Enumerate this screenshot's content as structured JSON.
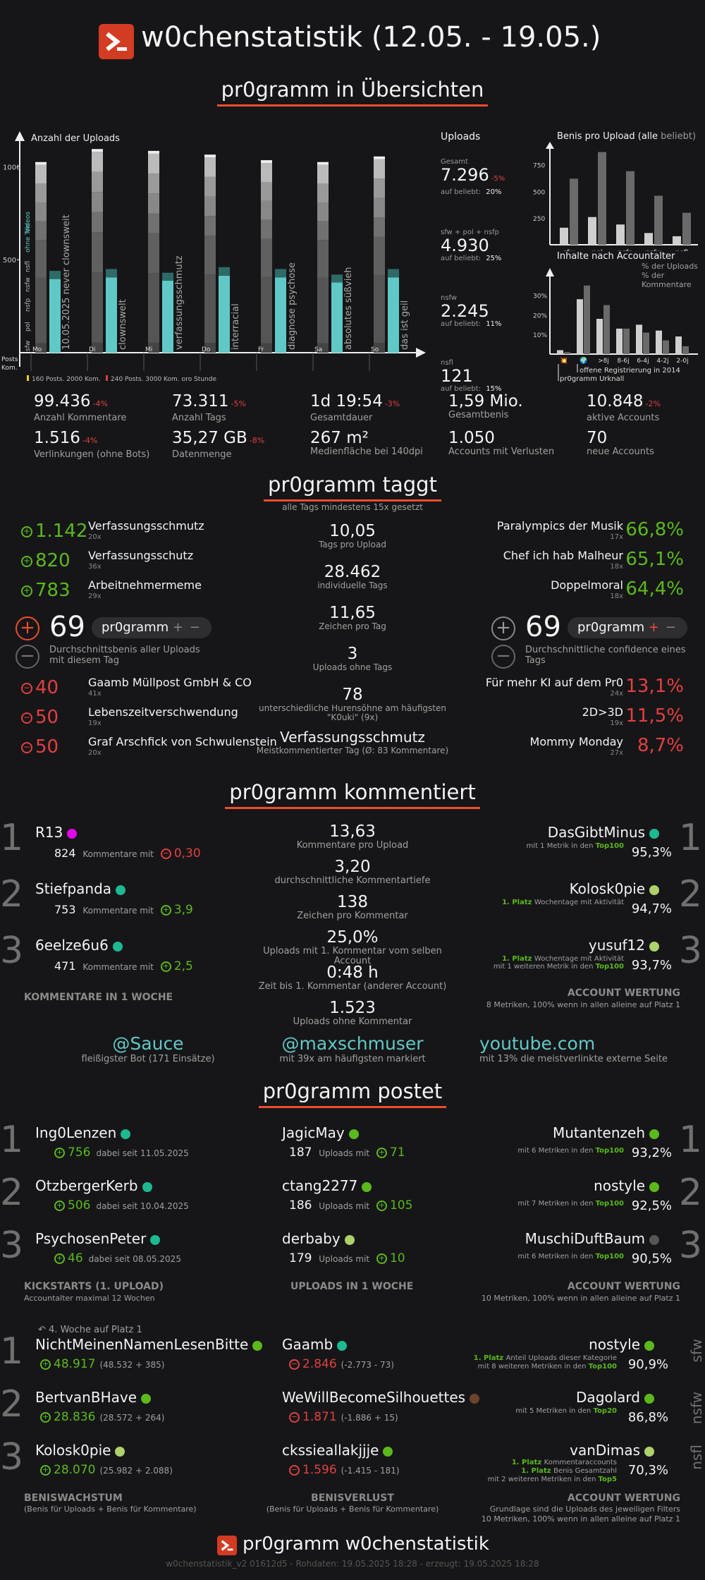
{
  "header": {
    "title": "w0chenstatistik (12.05. - 19.05.)"
  },
  "sections": {
    "overview": "pr0gramm in Übersichten",
    "tags": "pr0gramm taggt",
    "comments": "pr0gramm kommentiert",
    "posts": "pr0gramm postet"
  },
  "uploads_chart": {
    "title": "Anzahl der Uploads",
    "ticks": [
      "1000",
      "500"
    ],
    "days": [
      "Mo",
      "Di",
      "Mi",
      "Do",
      "Fr",
      "Sa",
      "So"
    ],
    "top_tags": [
      "10.05.2025 never clownsweit",
      "clownswelt",
      "verfassungsschmutz",
      "interracial",
      "diagnose psychose",
      "absolutes süßvieh",
      "das ist geil"
    ],
    "left_labels": [
      "Videos",
      "ohne Ton",
      "nsfl",
      "nsfw",
      "nsfp",
      "pol",
      "sfw"
    ],
    "posts_label": "Posts",
    "kom_label": "Kom.",
    "legend1": "160 Posts, 2000 Kom.",
    "legend2": "240 Posts, 3000 Kom. pro Stunde",
    "chart_data": {
      "type": "bar",
      "categories": [
        "Mo",
        "Di",
        "Mi",
        "Do",
        "Fr",
        "Sa",
        "So"
      ],
      "series": [
        {
          "name": "Posts",
          "values": [
            1010,
            1080,
            1070,
            1050,
            1020,
            1010,
            1040
          ]
        },
        {
          "name": "Kom.",
          "values": [
            440,
            450,
            430,
            460,
            450,
            420,
            450
          ]
        }
      ],
      "ylim": [
        0,
        1100
      ]
    }
  },
  "uploads_summary": {
    "title": "Uploads",
    "items": [
      {
        "label": "Gesamt",
        "value": "7.296",
        "delta": "-5%",
        "sub": "auf beliebt:",
        "pct": "20%"
      },
      {
        "label": "sfw + pol + nsfp",
        "value": "4.930",
        "delta": "",
        "sub": "auf beliebt:",
        "pct": "25%"
      },
      {
        "label": "nsfw",
        "value": "2.245",
        "delta": "",
        "sub": "auf beliebt:",
        "pct": "11%"
      },
      {
        "label": "nsfl",
        "value": "121",
        "delta": "",
        "sub": "auf beliebt:",
        "pct": "15%"
      }
    ]
  },
  "benis_chart": {
    "title": "Benis pro Upload",
    "title_paren": "(alle",
    "title_beliebt": "beliebt)",
    "ticks": [
      "750",
      "500",
      "250"
    ],
    "chart_data": {
      "type": "bar",
      "categories": [
        "sfw",
        "pol",
        "nsfp",
        "nsfw",
        "nsfl"
      ],
      "series": [
        {
          "name": "alle",
          "values": [
            160,
            260,
            190,
            110,
            80
          ]
        },
        {
          "name": "beliebt",
          "values": [
            620,
            870,
            690,
            460,
            300
          ]
        }
      ],
      "ylim": [
        0,
        900
      ]
    }
  },
  "age_chart": {
    "title": "Inhalte nach Accountalter",
    "legend_uploads": "% der Uploads",
    "legend_comments": "% der Kommentare",
    "ticks": [
      "30%",
      "20%",
      "10%"
    ],
    "note1": "offene Registrierung in 2014",
    "note2": "pr0gramm Urknall",
    "chart_data": {
      "type": "bar",
      "categories": [
        "💥",
        "🌍",
        ">8j",
        "8-6j",
        "6-4j",
        "4-2j",
        "2-0j"
      ],
      "series": [
        {
          "name": "% der Uploads",
          "values": [
            2,
            28,
            18,
            13,
            15,
            12,
            9
          ]
        },
        {
          "name": "% der Kommentare",
          "values": [
            1,
            35,
            25,
            13,
            11,
            7,
            4
          ]
        }
      ],
      "ylim": [
        0,
        36
      ]
    }
  },
  "stats": [
    {
      "value": "99.436",
      "delta": "-4%",
      "label": "Anzahl Kommentare"
    },
    {
      "value": "73.311",
      "delta": "-5%",
      "label": "Anzahl Tags"
    },
    {
      "value": "1d 19:54",
      "delta": "-3%",
      "label": "Gesamtdauer"
    },
    {
      "value": "1,59 Mio.",
      "delta": "",
      "label": "Gesamtbenis"
    },
    {
      "value": "10.848",
      "delta": "-2%",
      "label": "aktive Accounts"
    },
    {
      "value": "1.516",
      "delta": "-4%",
      "label": "Verlinkungen (ohne Bots)"
    },
    {
      "value": "35,27 GB",
      "delta": "-8%",
      "label": "Datenmenge"
    },
    {
      "value": "267 m²",
      "delta": "",
      "label": "Medienfläche bei 140dpi"
    },
    {
      "value": "1.050",
      "delta": "",
      "label": "Accounts mit Verlusten"
    },
    {
      "value": "70",
      "delta": "",
      "label": "neue Accounts"
    }
  ],
  "tags": {
    "subtitle": "alle Tags mindestens 15x gesetzt",
    "top_benis": [
      {
        "value": "1.142",
        "name": "Verfassungsschmutz",
        "count": "20x"
      },
      {
        "value": "820",
        "name": "Verfassungsschutz",
        "count": "36x"
      },
      {
        "value": "783",
        "name": "Arbeitnehmermeme",
        "count": "29x"
      }
    ],
    "bottom_benis": [
      {
        "value": "40",
        "name": "Gaamb Müllpost GmbH & CO",
        "count": "41x"
      },
      {
        "value": "50",
        "name": "Lebenszeitverschwendung",
        "count": "19x"
      },
      {
        "value": "50",
        "name": "Graf Arschfick von Schwulenstein",
        "count": "20x"
      }
    ],
    "top_conf": [
      {
        "name": "Paralympics der Musik",
        "count": "17x",
        "value": "66,8%"
      },
      {
        "name": "Chef ich hab Malheur",
        "count": "18x",
        "value": "65,1%"
      },
      {
        "name": "Doppelmoral",
        "count": "18x",
        "value": "64,4%"
      }
    ],
    "bottom_conf": [
      {
        "name": "Für mehr KI auf dem Pr0",
        "count": "24x",
        "value": "13,1%"
      },
      {
        "name": "2D>3D",
        "count": "19x",
        "value": "11,5%"
      },
      {
        "name": "Mommy Monday",
        "count": "27x",
        "value": "8,7%"
      }
    ],
    "left_mid": {
      "value": "69",
      "toggle": "pr0gramm",
      "desc": "Durchschnittsbenis aller Uploads mit diesem Tag"
    },
    "right_mid": {
      "value": "69",
      "toggle": "pr0gramm",
      "desc": "Durchschnittliche confidence eines Tags"
    },
    "center": [
      {
        "value": "10,05",
        "label": "Tags pro Upload"
      },
      {
        "value": "28.462",
        "label": "individuelle Tags"
      },
      {
        "value": "11,65",
        "label": "Zeichen pro Tag"
      },
      {
        "value": "3",
        "label": "Uploads ohne Tags"
      },
      {
        "value": "78",
        "label": "unterschiedliche Hurensöhne am häufigsten \"K0uki\" (9x)"
      },
      {
        "value": "Verfassungsschmutz",
        "label": "Meistkommentierter Tag (Ø: 83 Kommentare)"
      }
    ]
  },
  "comments": {
    "left": [
      {
        "rank": "1",
        "name": "R13",
        "color": "#e108e9",
        "count": "824",
        "text": "Kommentare mit",
        "benis": "0,30",
        "sign": "-"
      },
      {
        "rank": "2",
        "name": "Stiefpanda",
        "color": "#1cb992",
        "count": "753",
        "text": "Kommentare mit",
        "benis": "3,9",
        "sign": "+"
      },
      {
        "rank": "3",
        "name": "6eelze6u6",
        "color": "#1cb992",
        "count": "471",
        "text": "Kommentare mit",
        "benis": "2,5",
        "sign": "+"
      }
    ],
    "left_footer": "KOMMENTARE IN 1 WOCHE",
    "center": [
      {
        "value": "13,63",
        "label": "Kommentare pro Upload"
      },
      {
        "value": "3,20",
        "label": "durchschnittliche Kommentartiefe"
      },
      {
        "value": "138",
        "label": "Zeichen pro Kommentar"
      },
      {
        "value": "25,0%",
        "label": "Uploads mit 1. Kommentar vom selben Account"
      },
      {
        "value": "0:48 h",
        "label": "Zeit bis 1. Kommentar (anderer Account)"
      },
      {
        "value": "1.523",
        "label": "Uploads ohne Kommentar"
      }
    ],
    "right": [
      {
        "rank": "1",
        "name": "DasGibtMinus",
        "color": "#1cb992",
        "line1": "mit 1 Metrik in den",
        "badge": "Top100",
        "value": "95,3%"
      },
      {
        "rank": "2",
        "name": "Kolosk0pie",
        "color": "#add16b",
        "line1": "1. Platz",
        "line2": "Wochentage mit Aktivität",
        "value": "94,7%"
      },
      {
        "rank": "3",
        "name": "yusuf12",
        "color": "#add16b",
        "line1": "1. Platz",
        "line2": "Wochentage mit Aktivität",
        "line3": "mit 1 weiteren Metrik in den",
        "badge": "Top100",
        "value": "93,7%"
      }
    ],
    "right_footer": "ACCOUNT WERTUNG",
    "right_footer_sub": "8 Metriken, 100% wenn in allen alleine auf Platz 1",
    "links": [
      {
        "value": "@Sauce",
        "label": "fleißigster Bot (171 Einsätze)"
      },
      {
        "value": "@maxschmuser",
        "label": "mit 39x am häufigsten markiert"
      },
      {
        "value": "youtube.com",
        "label": "mit 13% die meistverlinkte externe Seite"
      }
    ]
  },
  "posts": {
    "kick": [
      {
        "rank": "1",
        "name": "Ing0Lenzen",
        "color": "#1cb992",
        "benis": "756",
        "text": "dabei seit 11.05.2025"
      },
      {
        "rank": "2",
        "name": "OtzbergerKerb",
        "color": "#1cb992",
        "benis": "506",
        "text": "dabei seit 10.04.2025"
      },
      {
        "rank": "3",
        "name": "PsychosenPeter",
        "color": "#1cb992",
        "benis": "46",
        "text": "dabei seit 08.05.2025"
      }
    ],
    "kick_footer": "KICKSTARTS (1. UPLOAD)",
    "kick_footer_sub": "Accountalter maximal 12 Wochen",
    "uploads": [
      {
        "name": "JagicMay",
        "color": "#5bb91c",
        "count": "187",
        "benis": "71"
      },
      {
        "name": "ctang2277",
        "color": "#5bb91c",
        "count": "186",
        "benis": "105"
      },
      {
        "name": "derbaby",
        "color": "#add16b",
        "count": "179",
        "benis": "10"
      }
    ],
    "uploads_text": "Uploads mit",
    "uploads_footer": "UPLOADS IN 1 WOCHE",
    "acc": [
      {
        "rank": "1",
        "name": "Mutantenzeh",
        "color": "#5bb91c",
        "line": "mit 6 Metriken in den",
        "badge": "Top100",
        "value": "93,2%"
      },
      {
        "rank": "2",
        "name": "nostyle",
        "color": "#5bb91c",
        "line": "mit 7 Metriken in den",
        "badge": "Top100",
        "value": "92,5%"
      },
      {
        "rank": "3",
        "name": "MuschiDuftBaum",
        "color": "#555555",
        "line": "mit 6 Metriken in den",
        "badge": "Top100",
        "value": "90,5%"
      }
    ],
    "acc_footer": "ACCOUNT WERTUNG",
    "acc_footer_sub": "10 Metriken, 100% wenn in allen alleine auf Platz 1",
    "growth_note": "4. Woche auf Platz 1",
    "growth": [
      {
        "rank": "1",
        "name": "NichtMeinenNamenLesenBitte",
        "color": "#5bb91c",
        "value": "48.917",
        "detail": "(48.532 + 385)"
      },
      {
        "rank": "2",
        "name": "BertvanBHave",
        "color": "#5bb91c",
        "value": "28.836",
        "detail": "(28.572 + 264)"
      },
      {
        "rank": "3",
        "name": "Kolosk0pie",
        "color": "#add16b",
        "value": "28.070",
        "detail": "(25.982 + 2.088)"
      }
    ],
    "growth_footer": "BENISWACHSTUM",
    "growth_footer_sub": "(Benis für Uploads + Benis für Kommentare)",
    "loss": [
      {
        "name": "Gaamb",
        "color": "#1cb992",
        "value": "2.846",
        "detail": "(-2.773 - 73)"
      },
      {
        "name": "WeWillBecomeSilhouettes",
        "color": "#6c432b",
        "value": "1.871",
        "detail": "(-1.886 + 15)"
      },
      {
        "name": "ckssieallakjjje",
        "color": "#5bb91c",
        "value": "1.596",
        "detail": "(-1.415 - 181)"
      }
    ],
    "loss_footer": "BENISVERLUST",
    "loss_footer_sub": "(Benis für Uploads + Benis für Kommentare)",
    "filter": [
      {
        "rank": "1",
        "name": "nostyle",
        "color": "#5bb91c",
        "l1a": "1. Platz",
        "l1b": "Anteil Uploads dieser Kategorie",
        "l2": "mit 8 weiteren Metriken in den",
        "badge": "Top100",
        "value": "90,9%",
        "side": "sfw"
      },
      {
        "rank": "2",
        "name": "Dagolard",
        "color": "#5bb91c",
        "l1a": "",
        "l1b": "",
        "l2": "mit 5 Metriken in den",
        "badge": "Top20",
        "value": "86,8%",
        "side": "nsfw"
      },
      {
        "rank": "3",
        "name": "vanDimas",
        "color": "#add16b",
        "l1a": "1. Platz",
        "l1b": "Kommentaraccounts",
        "l1c": "1. Platz",
        "l1d": "Benis Gesamtzahl",
        "l2": "mit 2 weiteren Metriken in den",
        "badge": "Top5",
        "value": "70,3%",
        "side": "nsfl"
      }
    ],
    "filter_footer": "ACCOUNT WERTUNG",
    "filter_footer_sub1": "Grundlage sind die Uploads des jeweiligen Filters",
    "filter_footer_sub2": "10 Metriken, 100% wenn in allen alleine auf Platz 1"
  },
  "footer": {
    "title": "pr0gramm w0chenstatistik",
    "sub": "w0chenstatistik_v2 01612d5 - Rohdaten: 19.05.2025 18:28 - erzeugt: 19.05.2025 18:28"
  },
  "colors": {
    "accent": "#ee4d2e",
    "green": "#5bb91c",
    "red": "#e04040",
    "teal": "#60c8c6"
  }
}
